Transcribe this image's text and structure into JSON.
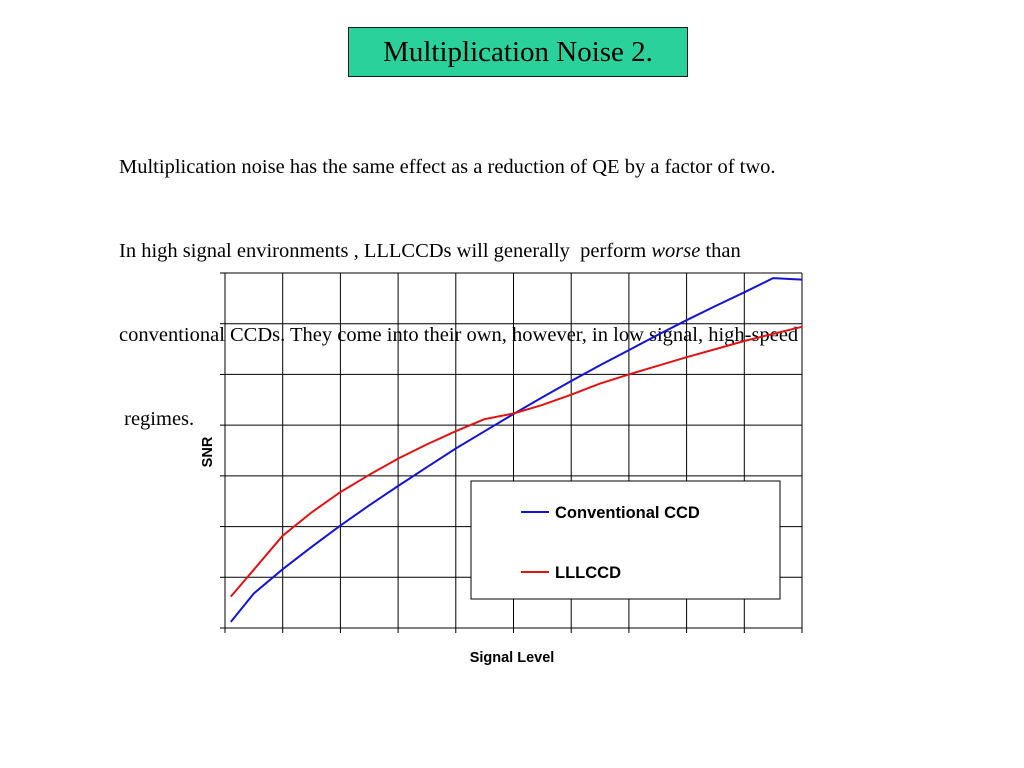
{
  "slide": {
    "title": "Multiplication Noise 2.",
    "paragraph": {
      "line1": "Multiplication noise has the same effect as a reduction of QE by a factor of two.",
      "line2_before": "In high signal environments , LLLCCDs will generally  perform ",
      "line2_emph": "worse",
      "line2_after": " than",
      "line3": "conventional CCDs. They come into their own, however, in low signal, high-speed",
      "line4": " regimes."
    }
  },
  "colors": {
    "title_background": "#2bd19a",
    "conventional": "#1414d2",
    "lllccd": "#e01414",
    "grid": "#000000"
  },
  "chart_data": {
    "type": "line",
    "title": "",
    "xlabel": "Signal Level",
    "ylabel": "SNR",
    "xlim": [
      0,
      10
    ],
    "ylim": [
      0,
      7
    ],
    "grid": true,
    "legend_position": "bottom-right",
    "x": [
      0.1,
      0.5,
      1.0,
      1.5,
      2.0,
      2.5,
      3.0,
      3.5,
      4.0,
      4.5,
      5.0,
      5.5,
      6.0,
      6.5,
      7.0,
      7.5,
      8.0,
      8.5,
      9.0,
      9.5,
      10.0
    ],
    "series": [
      {
        "name": "Conventional CCD",
        "values": [
          0.12,
          0.68,
          1.16,
          1.6,
          2.02,
          2.42,
          2.8,
          3.17,
          3.54,
          3.88,
          4.22,
          4.55,
          4.87,
          5.18,
          5.48,
          5.78,
          6.07,
          6.35,
          6.62,
          6.9,
          6.87
        ]
      },
      {
        "name": "LLLCCD",
        "values": [
          0.62,
          1.15,
          1.82,
          2.28,
          2.68,
          3.02,
          3.34,
          3.62,
          3.88,
          4.12,
          4.23,
          4.4,
          4.6,
          4.82,
          5.0,
          5.17,
          5.34,
          5.5,
          5.66,
          5.8,
          5.94
        ]
      }
    ]
  }
}
